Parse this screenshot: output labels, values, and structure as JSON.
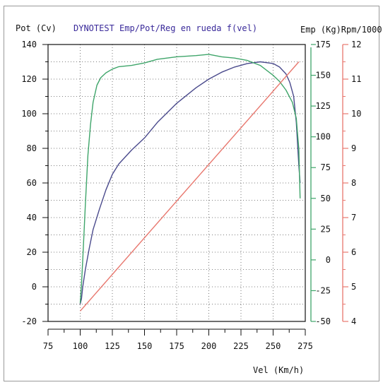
{
  "chart_data": {
    "type": "line",
    "title": "DYNOTEST Emp/Pot/Reg en rueda f(vel)",
    "left_axis_label": "Pot (Cv)",
    "right_axis_label": "Emp (Kg)Rpm/1000",
    "xlabel": "Vel (Km/h)",
    "xlim": [
      75,
      275
    ],
    "x_ticks": [
      "75",
      "100",
      "125",
      "150",
      "175",
      "200",
      "225",
      "250",
      "275"
    ],
    "y_left_lim": [
      -20,
      140
    ],
    "y_left_ticks": [
      "-20",
      "0",
      "20",
      "40",
      "60",
      "80",
      "100",
      "120",
      "140"
    ],
    "y_emp_lim": [
      -50,
      175
    ],
    "y_emp_ticks": [
      "-50",
      "-25",
      "0",
      "25",
      "50",
      "75",
      "100",
      "125",
      "150",
      "175"
    ],
    "y_rpm_lim": [
      4,
      12
    ],
    "y_rpm_ticks": [
      "4",
      "5",
      "6",
      "7",
      "8",
      "9",
      "10",
      "11",
      "12"
    ],
    "grid": true,
    "series": [
      {
        "axis": "left",
        "color": "#4a4a8c",
        "x": [
          100,
          101,
          102,
          104,
          107,
          110,
          115,
          120,
          125,
          130,
          140,
          150,
          160,
          175,
          190,
          200,
          210,
          220,
          230,
          240,
          250,
          255,
          260,
          263,
          266,
          268,
          270,
          271
        ],
        "y": [
          -10,
          -7,
          0,
          10,
          22,
          33,
          45,
          56,
          65,
          71,
          79,
          86,
          95,
          106,
          115,
          120,
          124,
          127,
          129,
          130,
          129,
          127,
          123,
          118,
          110,
          95,
          70,
          60
        ]
      },
      {
        "axis": "emp",
        "color": "#3fa56a",
        "x": [
          100,
          101,
          102,
          104,
          106,
          108,
          110,
          113,
          116,
          120,
          125,
          130,
          140,
          150,
          160,
          175,
          190,
          200,
          210,
          220,
          230,
          240,
          250,
          255,
          260,
          265,
          268,
          270,
          271
        ],
        "y": [
          -35,
          -20,
          0,
          45,
          85,
          110,
          128,
          142,
          148,
          152,
          155,
          157,
          158,
          160,
          163,
          165,
          166,
          167,
          165,
          164,
          162,
          158,
          150,
          145,
          138,
          128,
          115,
          90,
          50
        ]
      },
      {
        "axis": "rpm",
        "color": "#e8776e",
        "x": [
          100,
          270
        ],
        "y": [
          4.3,
          11.5
        ]
      }
    ]
  }
}
